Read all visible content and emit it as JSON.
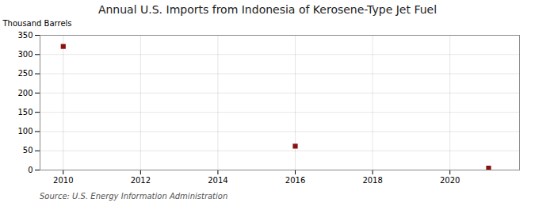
{
  "chart_data": {
    "type": "scatter",
    "title": "Annual U.S. Imports from Indonesia of Kerosene-Type Jet Fuel",
    "ylabel": "Thousand Barrels",
    "annotations": [
      "Source: U.S. Energy Information Administration"
    ],
    "x": [
      2010,
      2016,
      2021
    ],
    "values": [
      321,
      62,
      5
    ],
    "color": "#8b1010",
    "marker": "square",
    "xlim": [
      2009.4,
      2021.8
    ],
    "ylim": [
      0,
      350
    ],
    "xticks": [
      2010,
      2012,
      2014,
      2016,
      2018,
      2020
    ],
    "yticks": [
      0,
      50,
      100,
      150,
      200,
      250,
      300,
      350
    ],
    "grid": true
  }
}
